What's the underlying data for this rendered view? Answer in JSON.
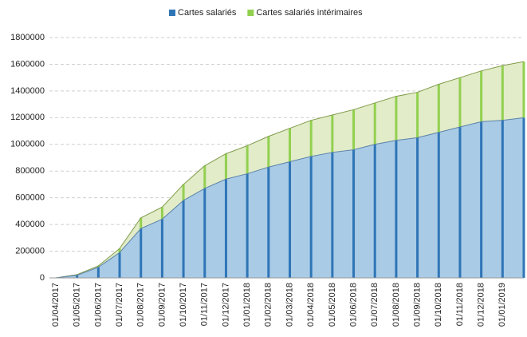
{
  "chart_data": {
    "type": "stacked-area",
    "categories": [
      "01/04/2017",
      "01/05/2017",
      "01/06/2017",
      "01/07/2017",
      "01/08/2017",
      "01/09/2017",
      "01/10/2017",
      "01/11/2017",
      "01/12/2017",
      "01/01/2018",
      "01/02/2018",
      "01/03/2018",
      "01/04/2018",
      "01/05/2018",
      "01/06/2018",
      "01/07/2018",
      "01/08/2018",
      "01/09/2018",
      "01/10/2018",
      "01/11/2018",
      "01/12/2018",
      "01/01/2019",
      null
    ],
    "series": [
      {
        "name": "Cartes salariés",
        "color": "#2e75b6",
        "fill": "#a9cbe6",
        "values": [
          0,
          20000,
          80000,
          190000,
          370000,
          440000,
          580000,
          670000,
          740000,
          780000,
          830000,
          870000,
          910000,
          940000,
          960000,
          1000000,
          1030000,
          1050000,
          1090000,
          1130000,
          1170000,
          1180000,
          1200000
        ]
      },
      {
        "name": "Cartes salariés intérimaires",
        "color": "#92d050",
        "fill": "#e2ecc8",
        "values": [
          0,
          5000,
          10000,
          30000,
          80000,
          90000,
          120000,
          170000,
          190000,
          210000,
          230000,
          250000,
          270000,
          280000,
          300000,
          310000,
          330000,
          340000,
          360000,
          370000,
          380000,
          410000,
          420000
        ]
      }
    ],
    "ylim": [
      0,
      1800000
    ],
    "yticks": [
      0,
      200000,
      400000,
      600000,
      800000,
      1000000,
      1200000,
      1400000,
      1600000,
      1800000
    ],
    "grid": true,
    "legend": "top"
  }
}
